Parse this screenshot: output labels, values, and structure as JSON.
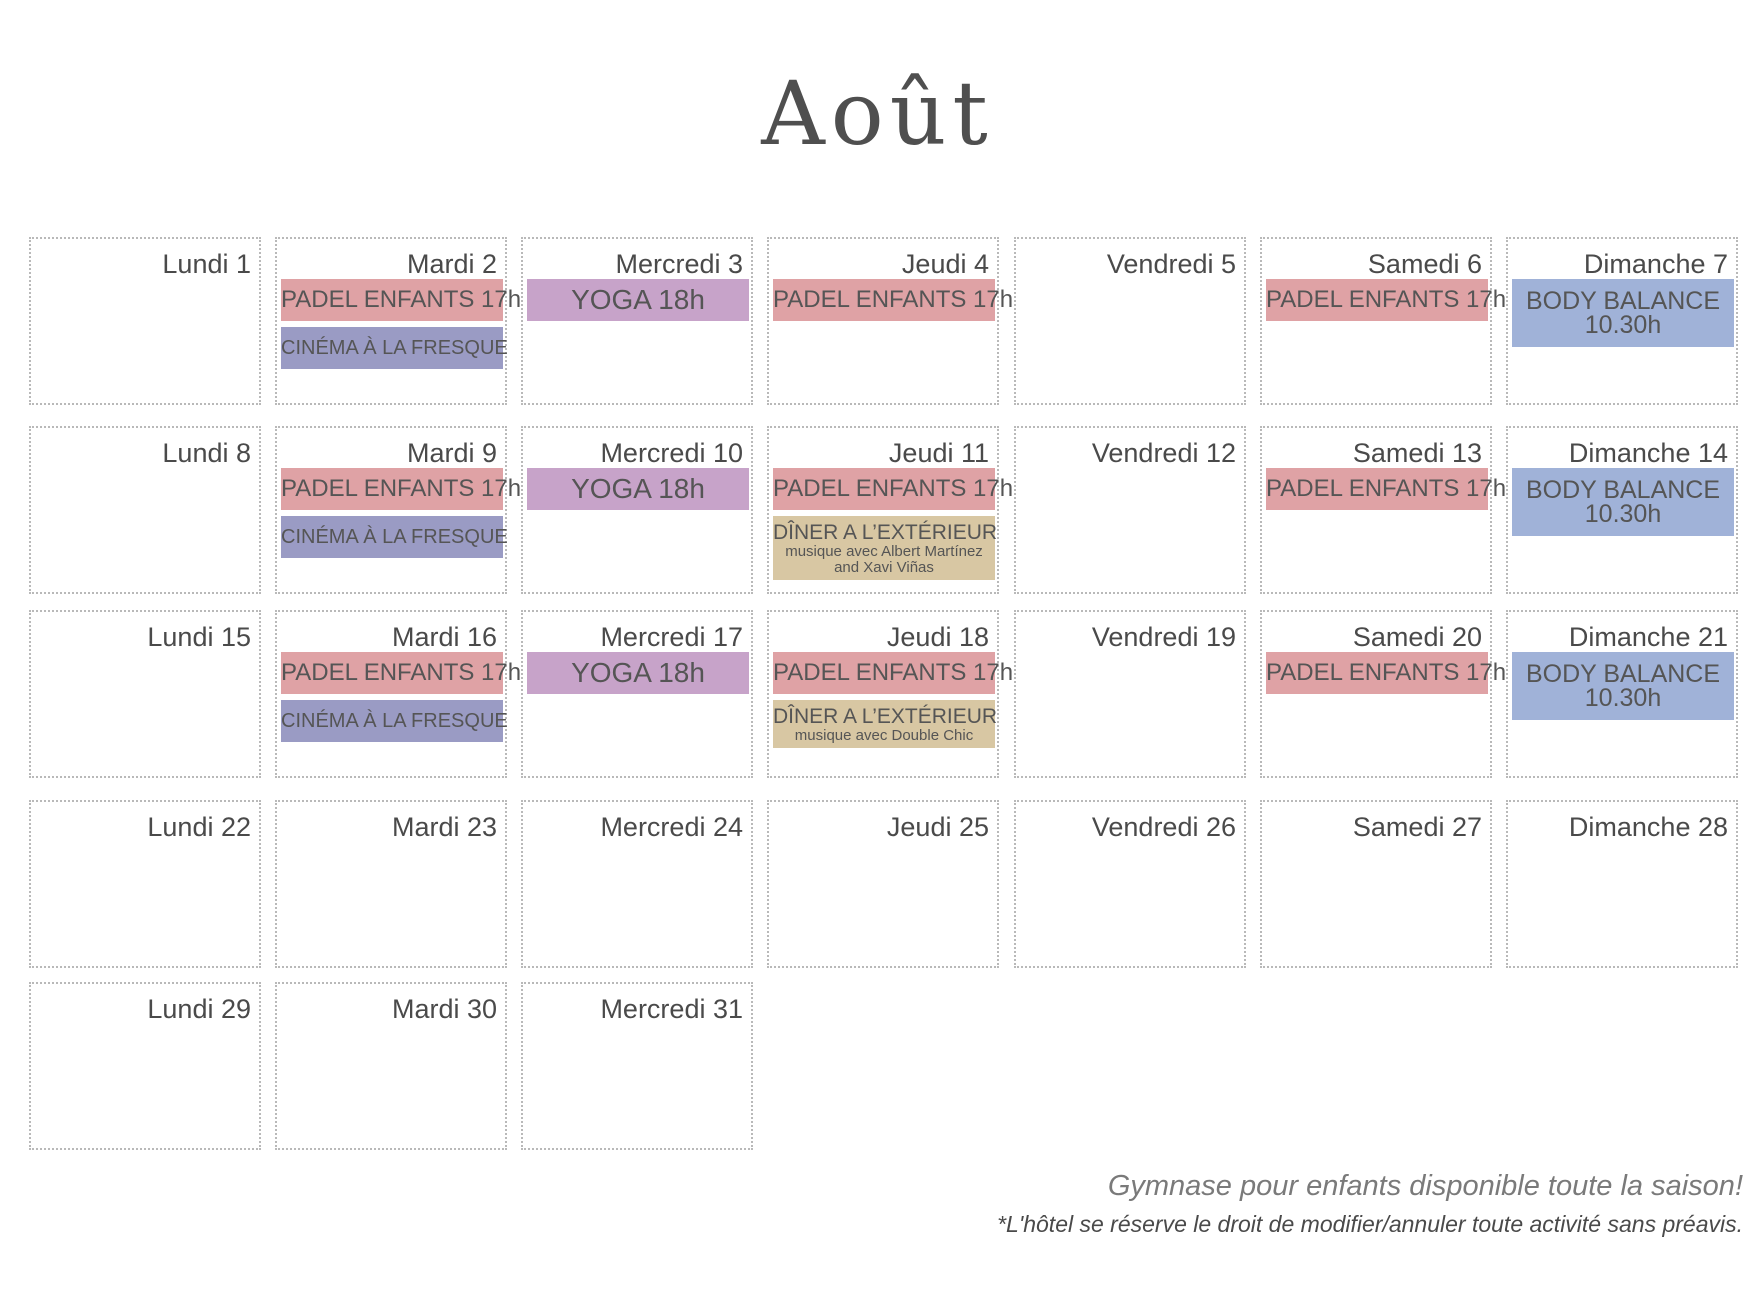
{
  "title": "Août",
  "weeks": [
    [
      {
        "label": "Lundi 1",
        "events": []
      },
      {
        "label": "Mardi 2",
        "events": [
          {
            "type": "padel",
            "text": "PADEL ENFANTS 17h"
          },
          {
            "type": "cinema",
            "text": "CINÉMA À LA FRESQUE"
          }
        ]
      },
      {
        "label": "Mercredi 3",
        "events": [
          {
            "type": "yoga",
            "text": "YOGA 18h"
          }
        ]
      },
      {
        "label": "Jeudi 4",
        "events": [
          {
            "type": "padel",
            "text": "PADEL ENFANTS 17h"
          }
        ]
      },
      {
        "label": "Vendredi 5",
        "events": []
      },
      {
        "label": "Samedi 6",
        "events": [
          {
            "type": "padel",
            "text": "PADEL ENFANTS 17h"
          }
        ]
      },
      {
        "label": "Dimanche 7",
        "events": [
          {
            "type": "body-balance",
            "text": "BODY BALANCE 10.30h"
          }
        ]
      }
    ],
    [
      {
        "label": "Lundi 8",
        "events": []
      },
      {
        "label": "Mardi 9",
        "events": [
          {
            "type": "padel",
            "text": "PADEL ENFANTS 17h"
          },
          {
            "type": "cinema",
            "text": "CINÉMA À LA FRESQUE"
          }
        ]
      },
      {
        "label": "Mercredi 10",
        "events": [
          {
            "type": "yoga",
            "text": "YOGA 18h"
          }
        ]
      },
      {
        "label": "Jeudi 11",
        "events": [
          {
            "type": "padel",
            "text": "PADEL ENFANTS 17h"
          },
          {
            "type": "diner",
            "text": "DÎNER A L’EXTÉRIEUR",
            "sub": [
              "musique avec Albert Martínez",
              "and Xavi Viñas"
            ]
          }
        ]
      },
      {
        "label": "Vendredi 12",
        "events": []
      },
      {
        "label": "Samedi 13",
        "events": [
          {
            "type": "padel",
            "text": "PADEL ENFANTS 17h"
          }
        ]
      },
      {
        "label": "Dimanche 14",
        "events": [
          {
            "type": "body-balance",
            "text": "BODY BALANCE 10.30h"
          }
        ]
      }
    ],
    [
      {
        "label": "Lundi 15",
        "events": []
      },
      {
        "label": "Mardi 16",
        "events": [
          {
            "type": "padel",
            "text": "PADEL ENFANTS 17h"
          },
          {
            "type": "cinema",
            "text": "CINÉMA À LA FRESQUE"
          }
        ]
      },
      {
        "label": "Mercredi 17",
        "events": [
          {
            "type": "yoga",
            "text": "YOGA 18h"
          }
        ]
      },
      {
        "label": "Jeudi 18",
        "events": [
          {
            "type": "padel",
            "text": "PADEL ENFANTS 17h"
          },
          {
            "type": "diner",
            "text": "DÎNER A L’EXTÉRIEUR",
            "sub": [
              "musique avec Double Chic"
            ]
          }
        ]
      },
      {
        "label": "Vendredi 19",
        "events": []
      },
      {
        "label": "Samedi 20",
        "events": [
          {
            "type": "padel",
            "text": "PADEL ENFANTS 17h"
          }
        ]
      },
      {
        "label": "Dimanche 21",
        "events": [
          {
            "type": "body-balance",
            "text": "BODY BALANCE 10.30h"
          }
        ]
      }
    ],
    [
      {
        "label": "Lundi 22",
        "events": []
      },
      {
        "label": "Mardi 23",
        "events": []
      },
      {
        "label": "Mercredi 24",
        "events": []
      },
      {
        "label": "Jeudi 25",
        "events": []
      },
      {
        "label": "Vendredi 26",
        "events": []
      },
      {
        "label": "Samedi 27",
        "events": []
      },
      {
        "label": "Dimanche 28",
        "events": []
      }
    ],
    [
      {
        "label": "Lundi 29",
        "events": []
      },
      {
        "label": "Mardi 30",
        "events": []
      },
      {
        "label": "Mercredi 31",
        "events": []
      }
    ]
  ],
  "footer": {
    "note": "Gymnase pour enfants disponible toute la saison!",
    "disclaimer": "*L'hôtel se réserve le droit de modifier/annuler toute activité sans préavis."
  },
  "colors": {
    "padel": "#dfa2a5",
    "cinema": "#9a9bc4",
    "yoga": "#c7a3c9",
    "body-balance": "#a0b2d8",
    "diner": "#d8c7a3"
  }
}
